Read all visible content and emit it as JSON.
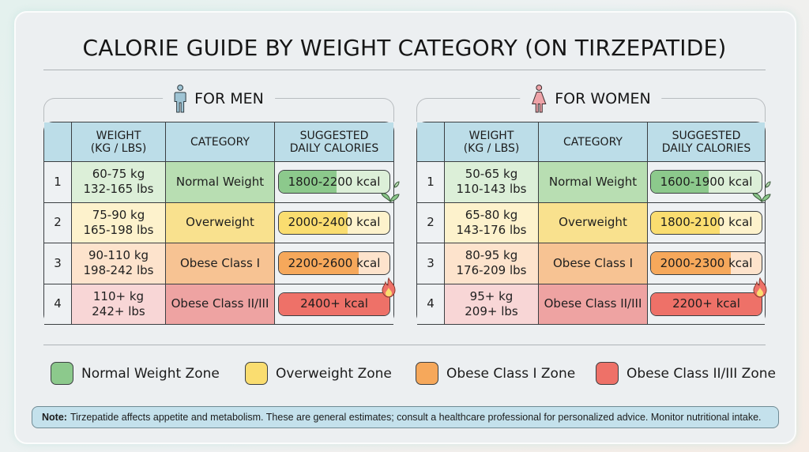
{
  "title": "CALORIE GUIDE BY WEIGHT CATEGORY (ON TIRZEPATIDE)",
  "colors": {
    "normal": "#8cc98c",
    "normal_light": "#dcefd8",
    "normal_cat": "#b8deb2",
    "overweight": "#fadd70",
    "overweight_light": "#fdf2cc",
    "overweight_cat": "#f9e18e",
    "obese1": "#f6a85b",
    "obese1_light": "#fde3cc",
    "obese1_cat": "#f7c393",
    "obese23": "#ee7168",
    "obese23_light": "#f8d6d6",
    "obese23_cat": "#eea3a2",
    "header_bg": "#bcdde8",
    "note_bg": "#c4e1ec",
    "men_icon": "#9fc4d4",
    "women_icon": "#eea3a8"
  },
  "headers": {
    "weight": "WEIGHT\n(KG / LBS)",
    "weight_line1": "WEIGHT",
    "weight_line2": "(KG / LBS)",
    "category": "CATEGORY",
    "calories_line1": "SUGGESTED",
    "calories_line2": "DAILY CALORIES"
  },
  "men": {
    "label": "FOR MEN",
    "icon": "male-person-icon",
    "rows": [
      {
        "num": "1",
        "kg": "60-75 kg",
        "lbs": "132-165 lbs",
        "category": "Normal Weight",
        "calories": "1800-2200 kcal",
        "zone": "normal",
        "fill_pct": 52
      },
      {
        "num": "2",
        "kg": "75-90 kg",
        "lbs": "165-198 lbs",
        "category": "Overweight",
        "calories": "2000-2400 kcal",
        "zone": "overweight",
        "fill_pct": 62
      },
      {
        "num": "3",
        "kg": "90-110 kg",
        "lbs": "198-242 lbs",
        "category": "Obese Class I",
        "calories": "2200-2600 kcal",
        "zone": "obese1",
        "fill_pct": 72
      },
      {
        "num": "4",
        "kg": "110+ kg",
        "lbs": "242+ lbs",
        "category": "Obese Class II/III",
        "calories": "2400+ kcal",
        "zone": "obese23",
        "fill_pct": 100
      }
    ]
  },
  "women": {
    "label": "FOR WOMEN",
    "icon": "female-person-icon",
    "rows": [
      {
        "num": "1",
        "kg": "50-65 kg",
        "lbs": "110-143 lbs",
        "category": "Normal Weight",
        "calories": "1600-1900 kcal",
        "zone": "normal",
        "fill_pct": 52
      },
      {
        "num": "2",
        "kg": "65-80 kg",
        "lbs": "143-176 lbs",
        "category": "Overweight",
        "calories": "1800-2100 kcal",
        "zone": "overweight",
        "fill_pct": 62
      },
      {
        "num": "3",
        "kg": "80-95 kg",
        "lbs": "176-209 lbs",
        "category": "Obese Class I",
        "calories": "2000-2300 kcal",
        "zone": "obese1",
        "fill_pct": 72
      },
      {
        "num": "4",
        "kg": "95+ kg",
        "lbs": "209+ lbs",
        "category": "Obese Class II/III",
        "calories": "2200+ kcal",
        "zone": "obese23",
        "fill_pct": 100
      }
    ]
  },
  "decorations": {
    "row1_icon": "leaf-sprout-icon",
    "row4_icon": "flame-icon"
  },
  "legend": [
    {
      "label": "Normal Weight Zone",
      "zone": "normal"
    },
    {
      "label": "Overweight Zone",
      "zone": "overweight"
    },
    {
      "label": "Obese Class I Zone",
      "zone": "obese1"
    },
    {
      "label": "Obese Class II/III Zone",
      "zone": "obese23"
    }
  ],
  "note": {
    "prefix": "Note:",
    "text": "Tirzepatide affects appetite and metabolism. These are general estimates; consult a healthcare professional for personalized advice. Monitor nutritional intake."
  }
}
